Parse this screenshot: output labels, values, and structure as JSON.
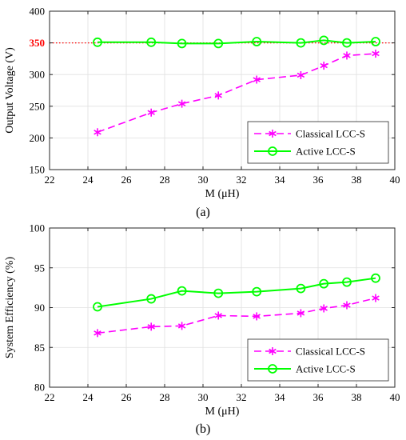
{
  "chart_data": [
    {
      "type": "line",
      "subfigure_label": "(a)",
      "xlabel": "M (μH)",
      "ylabel": "Output Voltage (V)",
      "xlim": [
        22,
        40
      ],
      "ylim": [
        150,
        400
      ],
      "xticks": [
        "22",
        "24",
        "26",
        "28",
        "30",
        "32",
        "34",
        "36",
        "38",
        "40"
      ],
      "yticks": [
        "150",
        "200",
        "250",
        "300",
        "350",
        "400"
      ],
      "x": [
        24.5,
        27.3,
        28.9,
        30.8,
        32.8,
        35.1,
        36.3,
        37.5,
        39.0
      ],
      "reference_line": {
        "value": 350,
        "label": "350",
        "color": "#ff0000",
        "style": "dotted"
      },
      "grid": true,
      "legend_position": "bottom-right",
      "series": [
        {
          "name": "Classical LCC-S",
          "color": "#ff00ff",
          "style": "dashed",
          "marker": "asterisk",
          "values": [
            209,
            240,
            254,
            267,
            292,
            299,
            314,
            330,
            333
          ]
        },
        {
          "name": "Active LCC-S",
          "color": "#00ff00",
          "style": "solid",
          "marker": "circle",
          "values": [
            351,
            351,
            349,
            349,
            352,
            350,
            354,
            350,
            352
          ]
        }
      ]
    },
    {
      "type": "line",
      "subfigure_label": "(b)",
      "xlabel": "M (μH)",
      "ylabel": "System Efficiency (%)",
      "xlim": [
        22,
        40
      ],
      "ylim": [
        80,
        100
      ],
      "xticks": [
        "22",
        "24",
        "26",
        "28",
        "30",
        "32",
        "34",
        "36",
        "38",
        "40"
      ],
      "yticks": [
        "80",
        "85",
        "90",
        "95",
        "100"
      ],
      "x": [
        24.5,
        27.3,
        28.9,
        30.8,
        32.8,
        35.1,
        36.3,
        37.5,
        39.0
      ],
      "grid": true,
      "legend_position": "bottom-right",
      "series": [
        {
          "name": "Classical LCC-S",
          "color": "#ff00ff",
          "style": "dashed",
          "marker": "asterisk",
          "values": [
            86.8,
            87.6,
            87.7,
            89.0,
            88.9,
            89.3,
            89.9,
            90.3,
            91.2
          ]
        },
        {
          "name": "Active LCC-S",
          "color": "#00ff00",
          "style": "solid",
          "marker": "circle",
          "values": [
            90.1,
            91.1,
            92.1,
            91.8,
            92.0,
            92.4,
            93.0,
            93.2,
            93.7
          ]
        }
      ]
    }
  ]
}
